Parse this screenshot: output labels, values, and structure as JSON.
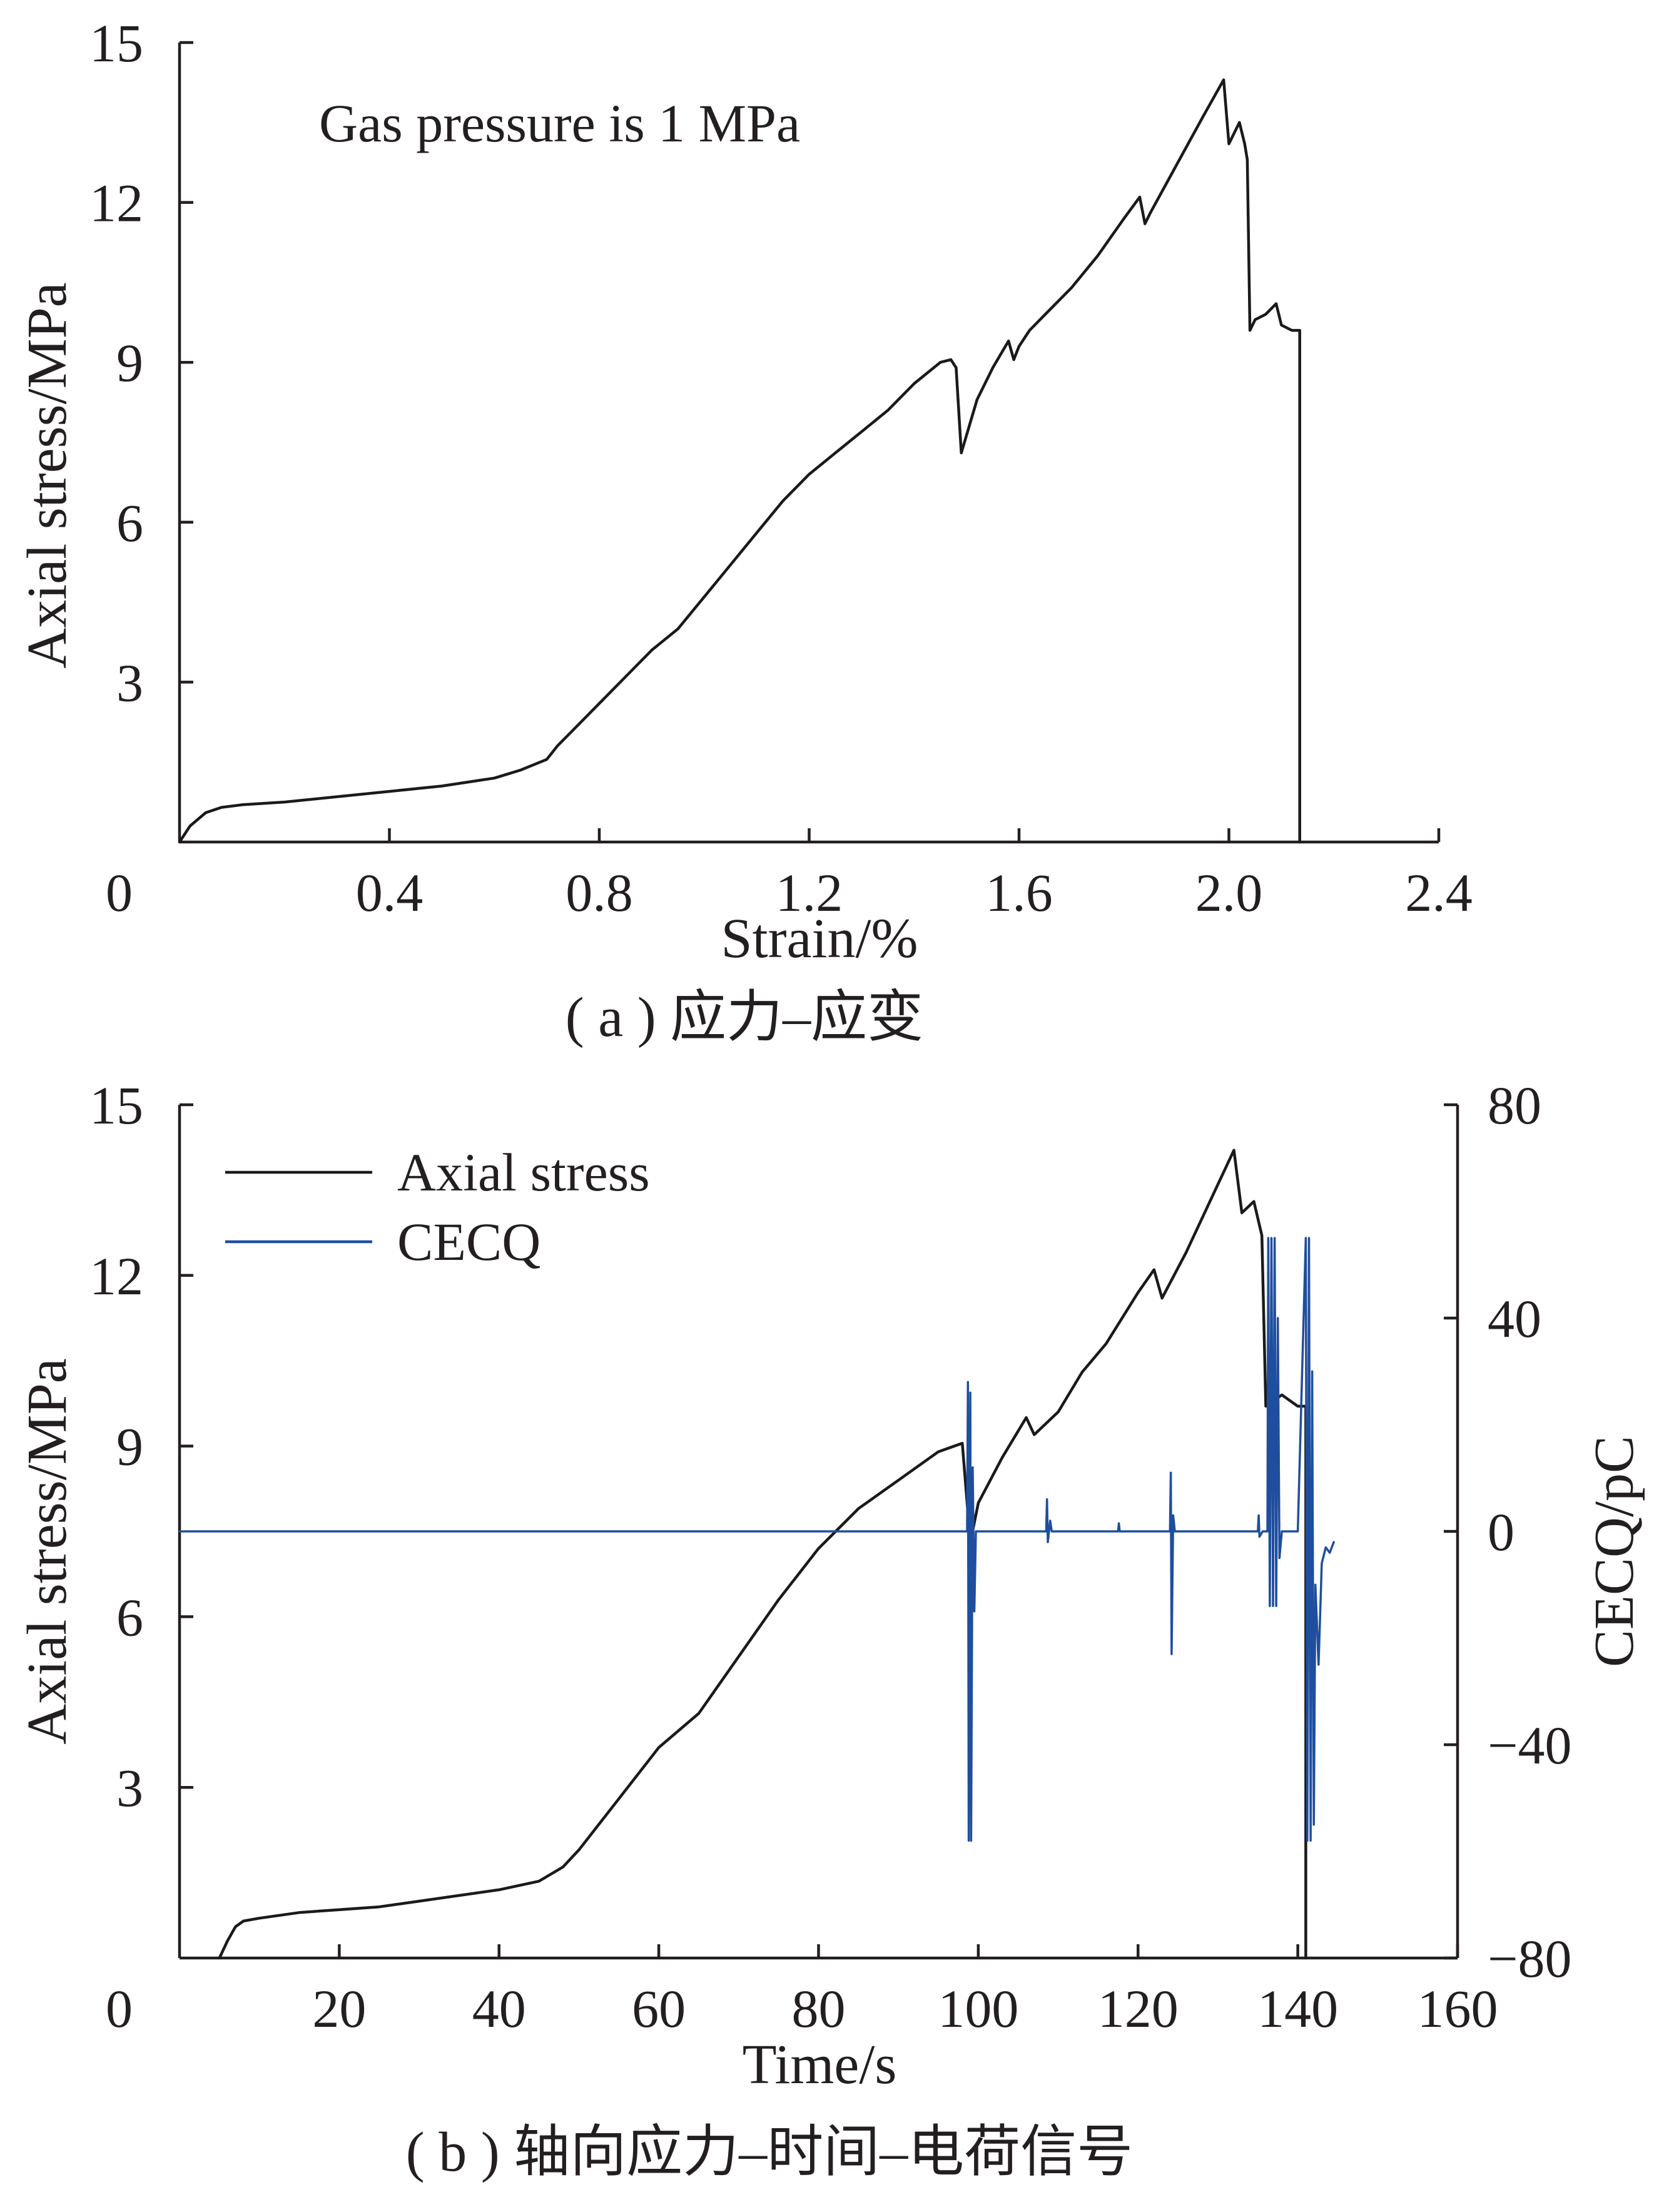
{
  "colors": {
    "ink": "#231f20",
    "stress_line": "#1a1a1a",
    "cecq_line": "#1f4e9e"
  },
  "chart_data": [
    {
      "type": "line",
      "caption": "( a )  应力–应变",
      "annotation": "Gas pressure is 1 MPa",
      "xlabel": "Strain/%",
      "ylabel": "Axial stress/MPa",
      "xlim": [
        0,
        2.4
      ],
      "ylim": [
        0,
        15
      ],
      "xticks": [
        "0",
        "0.4",
        "0.8",
        "1.2",
        "1.6",
        "2.0",
        "2.4"
      ],
      "xtick_values": [
        0,
        0.4,
        0.8,
        1.2,
        1.6,
        2.0,
        2.4
      ],
      "yticks": [
        "3",
        "6",
        "9",
        "12",
        "15"
      ],
      "ytick_values": [
        3,
        6,
        9,
        12,
        15
      ],
      "grid": false,
      "series": [
        {
          "x": [
            0.0,
            0.02,
            0.05,
            0.08,
            0.12,
            0.2,
            0.3,
            0.4,
            0.5,
            0.6,
            0.65,
            0.7,
            0.72,
            0.75,
            0.8,
            0.85,
            0.9,
            0.95,
            1.0,
            1.05,
            1.1,
            1.15,
            1.2,
            1.25,
            1.3,
            1.35,
            1.4,
            1.45,
            1.47,
            1.48,
            1.49,
            1.52,
            1.55,
            1.58,
            1.59,
            1.6,
            1.62,
            1.65,
            1.7,
            1.75,
            1.8,
            1.83,
            1.84,
            1.85,
            1.9,
            1.95,
            1.99,
            2.0,
            2.01,
            2.02,
            2.03,
            2.035,
            2.04,
            2.05,
            2.07,
            2.09,
            2.1,
            2.12,
            2.135,
            2.135
          ],
          "y": [
            0.0,
            0.3,
            0.55,
            0.65,
            0.7,
            0.75,
            0.85,
            0.95,
            1.05,
            1.2,
            1.35,
            1.55,
            1.8,
            2.1,
            2.6,
            3.1,
            3.6,
            4.0,
            4.6,
            5.2,
            5.8,
            6.4,
            6.9,
            7.3,
            7.7,
            8.1,
            8.6,
            9.0,
            9.05,
            8.9,
            7.3,
            8.3,
            8.9,
            9.4,
            9.05,
            9.3,
            9.6,
            9.9,
            10.4,
            11.0,
            11.7,
            12.1,
            11.6,
            11.8,
            12.7,
            13.6,
            14.3,
            13.1,
            13.3,
            13.5,
            13.1,
            12.8,
            9.6,
            9.8,
            9.9,
            10.1,
            9.7,
            9.6,
            9.6,
            0.0
          ]
        }
      ]
    },
    {
      "type": "line",
      "caption": "( b ) 轴向应力–时间–电荷信号",
      "xlabel": "Time/s",
      "ylabel": "Axial stress/MPa",
      "ylabel_right": "CECQ/pC",
      "xlim": [
        0,
        160
      ],
      "ylim": [
        0,
        15
      ],
      "y2lim": [
        -80,
        80
      ],
      "xticks": [
        "0",
        "20",
        "40",
        "60",
        "80",
        "100",
        "120",
        "140",
        "160"
      ],
      "xtick_values": [
        0,
        20,
        40,
        60,
        80,
        100,
        120,
        140,
        160
      ],
      "yticks": [
        "3",
        "6",
        "9",
        "12",
        "15"
      ],
      "ytick_values": [
        3,
        6,
        9,
        12,
        15
      ],
      "y2ticks": [
        "−80",
        "−40",
        "0",
        "40",
        "80"
      ],
      "y2tick_values": [
        -80,
        -40,
        0,
        40,
        80
      ],
      "grid": false,
      "legend": "top-left",
      "series": [
        {
          "name": "Axial stress",
          "axis": "left",
          "x": [
            5.0,
            6.0,
            7.0,
            8.0,
            10.0,
            15.0,
            20.0,
            25.0,
            30.0,
            35.0,
            40.0,
            45.0,
            48.0,
            50.0,
            55.0,
            60.0,
            65.0,
            70.0,
            75.0,
            80.0,
            85.0,
            90.0,
            95.0,
            98.0,
            99.0,
            100.0,
            103.0,
            106.0,
            107.0,
            110.0,
            113.0,
            116.0,
            120.0,
            122.0,
            123.0,
            126.0,
            130.0,
            132.0,
            133.0,
            134.5,
            135.0,
            135.5,
            136.0,
            138.0,
            140.0,
            141.0,
            141.0
          ],
          "y": [
            0.0,
            0.3,
            0.55,
            0.65,
            0.7,
            0.8,
            0.85,
            0.9,
            1.0,
            1.1,
            1.2,
            1.35,
            1.6,
            1.9,
            2.8,
            3.7,
            4.3,
            5.3,
            6.3,
            7.2,
            7.9,
            8.4,
            8.9,
            9.05,
            7.3,
            8.0,
            8.8,
            9.5,
            9.2,
            9.6,
            10.3,
            10.8,
            11.7,
            12.1,
            11.6,
            12.4,
            13.6,
            14.2,
            13.1,
            13.3,
            13.0,
            12.7,
            9.7,
            9.9,
            9.7,
            9.7,
            0.0
          ]
        },
        {
          "name": "CECQ",
          "axis": "right",
          "x": [
            0.0,
            98.6,
            98.7,
            98.8,
            99.0,
            99.1,
            99.3,
            99.5,
            99.7,
            108.5,
            108.6,
            108.7,
            109.0,
            109.2,
            117.5,
            117.6,
            117.7,
            124.0,
            124.1,
            124.2,
            124.4,
            124.6,
            135.0,
            135.1,
            135.2,
            135.6,
            136.2,
            136.3,
            136.5,
            136.7,
            136.9,
            137.1,
            137.3,
            137.5,
            137.7,
            138.0,
            140.0,
            141.0,
            141.2,
            141.4,
            141.6,
            141.8,
            142.0,
            142.2,
            142.6,
            143.0,
            143.5,
            144.0,
            144.5
          ],
          "y": [
            0.0,
            0.0,
            28.0,
            -58.0,
            26.0,
            -58.0,
            12.0,
            -15.0,
            0.0,
            0.0,
            6.0,
            -2.0,
            2.0,
            0.0,
            0.0,
            1.5,
            0.0,
            0.0,
            11.0,
            -23.0,
            3.0,
            0.0,
            0.0,
            3.0,
            -1.0,
            0.0,
            0.0,
            55.0,
            -14.0,
            55.0,
            -14.0,
            55.0,
            -14.0,
            40.0,
            -5.0,
            0.0,
            0.0,
            55.0,
            -58.0,
            55.0,
            -58.0,
            30.0,
            -55.0,
            -10.0,
            -25.0,
            -6.0,
            -3.0,
            -4.0,
            -2.0
          ]
        }
      ]
    }
  ]
}
